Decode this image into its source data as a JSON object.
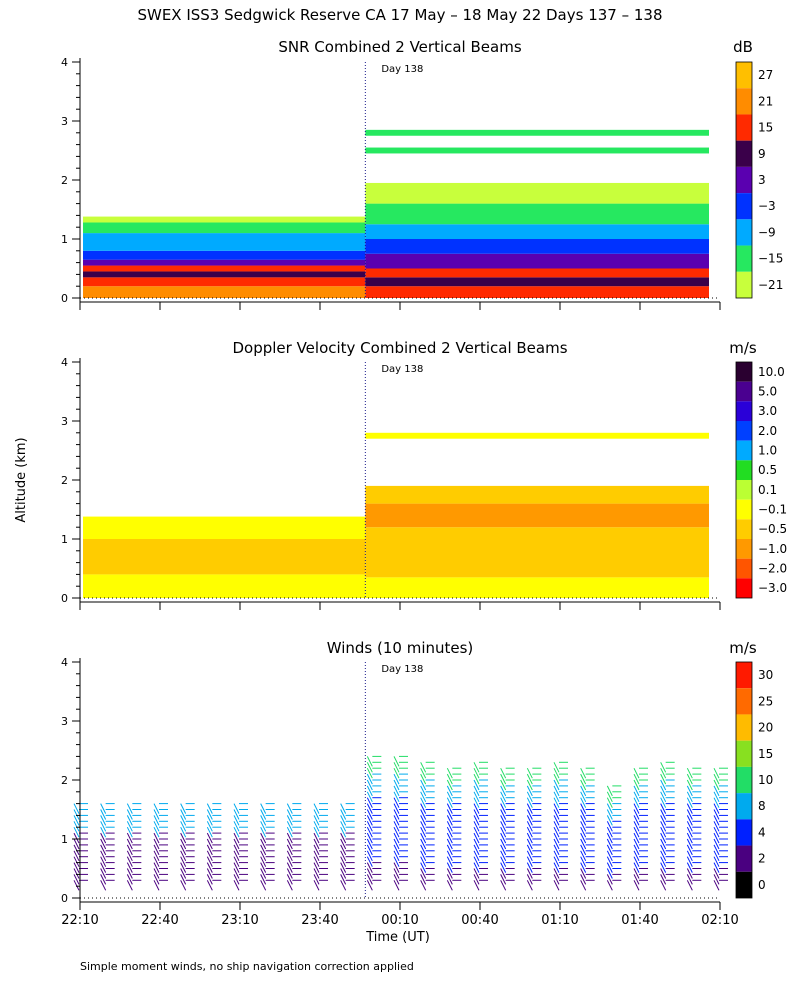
{
  "figure": {
    "title": "SWEX ISS3 Sedgwick Reserve CA  17 May – 18 May 22 Days 137 – 138",
    "ylabel": "Altitude (km)",
    "xlabel": "Time (UT)",
    "footnote": "Simple moment winds, no ship navigation correction applied",
    "day_marker": "Day 138",
    "x_ticks": [
      "22:10",
      "22:40",
      "23:10",
      "23:40",
      "00:10",
      "00:40",
      "01:10",
      "01:40",
      "02:10"
    ],
    "y_ticks": [
      "0",
      "1",
      "2",
      "3",
      "4"
    ]
  },
  "chart_data": [
    {
      "type": "heatmap",
      "title": "SNR Combined 2 Vertical Beams",
      "unit": "dB",
      "x_ticks": [
        "22:10",
        "22:40",
        "23:10",
        "23:40",
        "00:10",
        "00:40",
        "01:10",
        "01:40",
        "02:10"
      ],
      "ylim": [
        0,
        4
      ],
      "colorbar_labels": [
        "27",
        "21",
        "15",
        "9",
        "3",
        "−3",
        "−9",
        "−15",
        "−21"
      ],
      "colors": [
        "#ffbf00",
        "#ff8c00",
        "#ff2a00",
        "#3a004a",
        "#5a00b0",
        "#0032ff",
        "#00aaff",
        "#26e860",
        "#c8ff3c"
      ],
      "profile_137": [
        {
          "alt": [
            0.0,
            0.2
          ],
          "color": "#ff8c00"
        },
        {
          "alt": [
            0.2,
            0.35
          ],
          "color": "#ff2a00"
        },
        {
          "alt": [
            0.35,
            0.45
          ],
          "color": "#3a004a"
        },
        {
          "alt": [
            0.45,
            0.55
          ],
          "color": "#ff2a00"
        },
        {
          "alt": [
            0.55,
            0.65
          ],
          "color": "#5a00b0"
        },
        {
          "alt": [
            0.65,
            0.8
          ],
          "color": "#0032ff"
        },
        {
          "alt": [
            0.8,
            1.1
          ],
          "color": "#00aaff"
        },
        {
          "alt": [
            1.1,
            1.28
          ],
          "color": "#26e860"
        },
        {
          "alt": [
            1.28,
            1.38
          ],
          "color": "#c8ff3c"
        }
      ],
      "profile_138": [
        {
          "alt": [
            0.0,
            0.2
          ],
          "color": "#ff2a00"
        },
        {
          "alt": [
            0.2,
            0.35
          ],
          "color": "#3a004a"
        },
        {
          "alt": [
            0.35,
            0.5
          ],
          "color": "#ff2a00"
        },
        {
          "alt": [
            0.5,
            0.75
          ],
          "color": "#5a00b0"
        },
        {
          "alt": [
            0.75,
            1.0
          ],
          "color": "#0032ff"
        },
        {
          "alt": [
            1.0,
            1.25
          ],
          "color": "#00aaff"
        },
        {
          "alt": [
            1.25,
            1.6
          ],
          "color": "#26e860"
        },
        {
          "alt": [
            1.6,
            1.95
          ],
          "color": "#c8ff3c"
        },
        {
          "alt": [
            2.45,
            2.55
          ],
          "color": "#26e860"
        },
        {
          "alt": [
            2.75,
            2.85
          ],
          "color": "#26e860"
        }
      ]
    },
    {
      "type": "heatmap",
      "title": "Doppler Velocity Combined 2 Vertical Beams",
      "unit": "m/s",
      "x_ticks": [
        "22:10",
        "22:40",
        "23:10",
        "23:40",
        "00:10",
        "00:40",
        "01:10",
        "01:40",
        "02:10"
      ],
      "ylim": [
        0,
        4
      ],
      "colorbar_labels": [
        "10.0",
        "5.0",
        "3.0",
        "2.0",
        "1.0",
        "0.5",
        "0.1",
        "−0.1",
        "−0.5",
        "−1.0",
        "−2.0",
        "−3.0"
      ],
      "colors": [
        "#2a0030",
        "#4a0090",
        "#2a00d8",
        "#0040ff",
        "#00aaff",
        "#22dd22",
        "#bbff33",
        "#ffff00",
        "#ffcc00",
        "#ff9900",
        "#ff5500",
        "#ff0000"
      ],
      "profile_137": [
        {
          "alt": [
            0.0,
            0.4
          ],
          "color": "#ffff00"
        },
        {
          "alt": [
            0.4,
            1.0
          ],
          "color": "#ffcc00"
        },
        {
          "alt": [
            1.0,
            1.38
          ],
          "color": "#ffff00"
        }
      ],
      "profile_138": [
        {
          "alt": [
            0.0,
            0.35
          ],
          "color": "#ffff00"
        },
        {
          "alt": [
            0.35,
            1.2
          ],
          "color": "#ffcc00"
        },
        {
          "alt": [
            1.2,
            1.6
          ],
          "color": "#ff9900"
        },
        {
          "alt": [
            1.6,
            1.9
          ],
          "color": "#ffcc00"
        },
        {
          "alt": [
            2.7,
            2.8
          ],
          "color": "#ffff00"
        }
      ]
    },
    {
      "type": "scatter",
      "title": "Winds (10 minutes)",
      "unit": "m/s",
      "x_ticks": [
        "22:10",
        "22:40",
        "23:10",
        "23:40",
        "00:10",
        "00:40",
        "01:10",
        "01:40",
        "02:10"
      ],
      "ylim": [
        0,
        4
      ],
      "colorbar_labels": [
        "30",
        "25",
        "20",
        "15",
        "10",
        "8",
        "4",
        "2",
        "0"
      ],
      "colors": [
        "#ff1a00",
        "#ff6a00",
        "#ffbb00",
        "#88e020",
        "#22dd66",
        "#00aaee",
        "#0020ff",
        "#4a0080",
        "#000000"
      ],
      "wind_profiles": [
        {
          "time": "22:10",
          "top": 1.65
        },
        {
          "time": "22:20",
          "top": 1.65
        },
        {
          "time": "22:30",
          "top": 1.65
        },
        {
          "time": "22:40",
          "top": 1.65
        },
        {
          "time": "22:50",
          "top": 1.65
        },
        {
          "time": "23:00",
          "top": 1.65
        },
        {
          "time": "23:10",
          "top": 1.65
        },
        {
          "time": "23:20",
          "top": 1.65
        },
        {
          "time": "23:30",
          "top": 1.65
        },
        {
          "time": "23:40",
          "top": 1.65
        },
        {
          "time": "23:50",
          "top": 1.65
        },
        {
          "time": "00:00",
          "top": 2.5
        },
        {
          "time": "00:10",
          "top": 2.5
        },
        {
          "time": "00:20",
          "top": 2.4
        },
        {
          "time": "00:30",
          "top": 2.3
        },
        {
          "time": "00:40",
          "top": 2.4
        },
        {
          "time": "00:50",
          "top": 2.3
        },
        {
          "time": "01:00",
          "top": 2.3
        },
        {
          "time": "01:10",
          "top": 2.4
        },
        {
          "time": "01:20",
          "top": 2.3
        },
        {
          "time": "01:30",
          "top": 2.0
        },
        {
          "time": "01:40",
          "top": 2.3
        },
        {
          "time": "01:50",
          "top": 2.4
        },
        {
          "time": "02:00",
          "top": 2.3
        },
        {
          "time": "02:10",
          "top": 2.3
        }
      ]
    }
  ]
}
